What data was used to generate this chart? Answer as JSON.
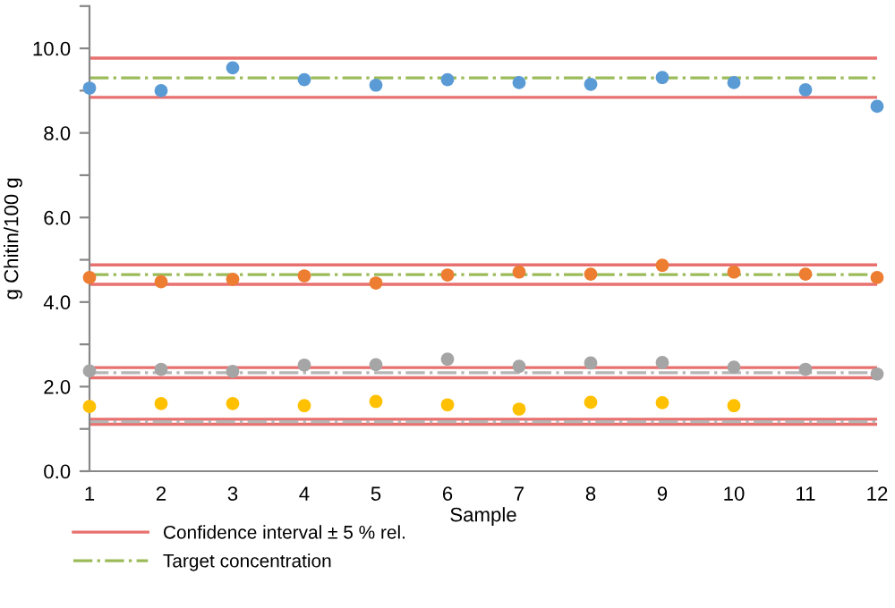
{
  "chart_data": {
    "type": "scatter",
    "xlabel": "Sample",
    "ylabel": "g Chitin/100 g",
    "x": [
      1,
      2,
      3,
      4,
      5,
      6,
      7,
      8,
      9,
      10,
      11,
      12
    ],
    "series": [
      {
        "color": "#5b9bd5",
        "values": [
          9.06,
          9.0,
          9.54,
          9.26,
          9.13,
          9.26,
          9.19,
          9.15,
          9.31,
          9.19,
          9.02,
          8.63
        ]
      },
      {
        "color": "#ed7d31",
        "values": [
          4.58,
          4.48,
          4.54,
          4.62,
          4.45,
          4.64,
          4.71,
          4.66,
          4.87,
          4.71,
          4.66,
          4.58
        ]
      },
      {
        "color": "#a5a5a5",
        "values": [
          2.37,
          2.41,
          2.36,
          2.51,
          2.52,
          2.65,
          2.48,
          2.56,
          2.57,
          2.46,
          2.41,
          2.3
        ]
      },
      {
        "color": "#ffc000",
        "values": [
          1.53,
          1.6,
          1.6,
          1.55,
          1.65,
          1.57,
          1.47,
          1.63,
          1.62,
          1.55,
          null,
          null
        ]
      }
    ],
    "marker": "circle",
    "ref_lines": [
      {
        "axis": "y",
        "value": 9.77,
        "label": "Confidence interval ± 5 % rel.",
        "color": "#e8716f",
        "line_style": "solid"
      },
      {
        "axis": "y",
        "value": 8.84,
        "color": "#e8716f",
        "line_style": "solid"
      },
      {
        "axis": "y",
        "value": 4.88,
        "color": "#e8716f",
        "line_style": "solid"
      },
      {
        "axis": "y",
        "value": 4.42,
        "color": "#e8716f",
        "line_style": "solid"
      },
      {
        "axis": "y",
        "value": 2.45,
        "color": "#e8716f",
        "line_style": "solid"
      },
      {
        "axis": "y",
        "value": 2.21,
        "color": "#e8716f",
        "line_style": "solid"
      },
      {
        "axis": "y",
        "value": 1.23,
        "color": "#e8716f",
        "line_style": "solid"
      },
      {
        "axis": "y",
        "value": 1.11,
        "color": "#e8716f",
        "line_style": "solid"
      },
      {
        "axis": "y",
        "value": 9.3,
        "label": "Target concentration",
        "color": "#9bbb59",
        "line_style": "dashdot"
      },
      {
        "axis": "y",
        "value": 4.65,
        "color": "#9bbb59",
        "line_style": "dashdot"
      },
      {
        "axis": "y",
        "value": 2.33,
        "color": "#b5b5b5",
        "line_style": "dashdot"
      },
      {
        "axis": "y",
        "value": 1.17,
        "color": "#b5b5b5",
        "line_style": "dashdot"
      }
    ],
    "xlim": [
      1,
      12
    ],
    "xticks": [
      1,
      2,
      3,
      4,
      5,
      6,
      7,
      8,
      9,
      10,
      11,
      12
    ],
    "ylim": [
      0,
      11
    ],
    "yticks": [
      {
        "value": 0,
        "label": "0.0"
      },
      {
        "value": 1,
        "label": null
      },
      {
        "value": 2,
        "label": "2.0"
      },
      {
        "value": 3,
        "label": null
      },
      {
        "value": 4,
        "label": "4.0"
      },
      {
        "value": 5,
        "label": null
      },
      {
        "value": 6,
        "label": "6.0"
      },
      {
        "value": 7,
        "label": null
      },
      {
        "value": 8,
        "label": "8.0"
      },
      {
        "value": 9,
        "label": null
      },
      {
        "value": 10,
        "label": "10.0"
      },
      {
        "value": 11,
        "label": null
      }
    ],
    "grid": false,
    "legend": "bottom left"
  }
}
